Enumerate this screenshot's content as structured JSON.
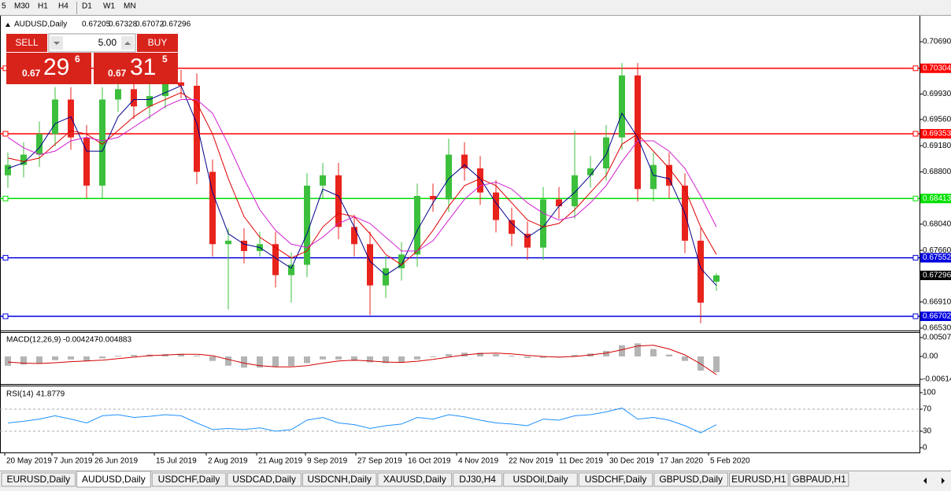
{
  "toolbar": [
    "5",
    "M30",
    "H1",
    "H4",
    "D1",
    "W1",
    "MN"
  ],
  "trade_panel": {
    "sell": "SELL",
    "buy": "BUY",
    "lots": "5.00",
    "bid": {
      "big": "0.67",
      "main": "29",
      "small": "6"
    },
    "ask": {
      "big": "0.67",
      "main": "31",
      "small": "5"
    }
  },
  "chart_data": [
    {
      "type": "candlestick",
      "title": "AUDUSD,Daily",
      "x": [
        0,
        1,
        2,
        3,
        4,
        5,
        6,
        7,
        8,
        9,
        10,
        11,
        12,
        13,
        14,
        15,
        16,
        17,
        18,
        19,
        20,
        21,
        22,
        23,
        24,
        25,
        26,
        27,
        28,
        29,
        30,
        31,
        32,
        33,
        34,
        35,
        36,
        37,
        38,
        39,
        40,
        41,
        42,
        43,
        44,
        45
      ],
      "open": [
        0.6875,
        0.689,
        0.6905,
        0.6935,
        0.6985,
        0.693,
        0.686,
        0.6985,
        0.7,
        0.6975,
        0.699,
        0.701,
        0.7005,
        0.688,
        0.6775,
        0.678,
        0.6765,
        0.6775,
        0.673,
        0.6745,
        0.686,
        0.6875,
        0.68,
        0.6775,
        0.6715,
        0.674,
        0.676,
        0.6845,
        0.684,
        0.6905,
        0.6885,
        0.685,
        0.681,
        0.679,
        0.677,
        0.684,
        0.683,
        0.6875,
        0.6885,
        0.693,
        0.702,
        0.6855,
        0.689,
        0.686,
        0.678,
        0.67205
      ],
      "high": [
        0.6908,
        0.6923,
        0.6953,
        0.7003,
        0.7003,
        0.6948,
        0.7003,
        0.7018,
        0.7018,
        0.7008,
        0.7028,
        0.7028,
        0.7023,
        0.6898,
        0.6798,
        0.6798,
        0.6793,
        0.6793,
        0.6763,
        0.6878,
        0.6893,
        0.6893,
        0.6818,
        0.6793,
        0.6758,
        0.6778,
        0.6863,
        0.6863,
        0.6928,
        0.6923,
        0.6903,
        0.6868,
        0.6828,
        0.6808,
        0.6858,
        0.6858,
        0.694,
        0.6903,
        0.6948,
        0.7038,
        0.7038,
        0.6908,
        0.6908,
        0.6878,
        0.6798,
        0.67328
      ],
      "low": [
        0.6857,
        0.6872,
        0.6887,
        0.6917,
        0.6912,
        0.6842,
        0.6842,
        0.6967,
        0.6957,
        0.6957,
        0.6972,
        0.6987,
        0.6862,
        0.6757,
        0.668,
        0.6747,
        0.6757,
        0.6712,
        0.669,
        0.6727,
        0.6842,
        0.6782,
        0.6757,
        0.6672,
        0.6697,
        0.6722,
        0.6742,
        0.6822,
        0.6822,
        0.6867,
        0.6832,
        0.6792,
        0.6772,
        0.6752,
        0.6752,
        0.6812,
        0.6812,
        0.6857,
        0.6867,
        0.6912,
        0.6837,
        0.6837,
        0.6842,
        0.6762,
        0.666,
        0.67072
      ],
      "close": [
        0.689,
        0.6905,
        0.6935,
        0.6985,
        0.693,
        0.686,
        0.6985,
        0.7,
        0.6975,
        0.699,
        0.701,
        0.7005,
        0.688,
        0.6775,
        0.678,
        0.6765,
        0.6775,
        0.673,
        0.6745,
        0.686,
        0.6875,
        0.68,
        0.6775,
        0.6715,
        0.674,
        0.676,
        0.6845,
        0.684,
        0.6905,
        0.6885,
        0.685,
        0.681,
        0.679,
        0.677,
        0.684,
        0.683,
        0.6875,
        0.6885,
        0.693,
        0.702,
        0.6855,
        0.689,
        0.686,
        0.678,
        0.669,
        0.67296
      ],
      "colors": {
        "up": "#3cbf3c",
        "down": "#e8231c",
        "current": "#000000"
      },
      "moving_averages": [
        {
          "color": "#00008b",
          "values": [
            0.6885,
            0.6893,
            0.6915,
            0.695,
            0.696,
            0.691,
            0.691,
            0.696,
            0.6985,
            0.6985,
            0.6995,
            0.7005,
            0.695,
            0.685,
            0.679,
            0.6775,
            0.677,
            0.6755,
            0.674,
            0.679,
            0.6855,
            0.6845,
            0.68,
            0.675,
            0.673,
            0.6745,
            0.6795,
            0.6835,
            0.687,
            0.689,
            0.687,
            0.6835,
            0.6805,
            0.6785,
            0.68,
            0.683,
            0.685,
            0.6875,
            0.6905,
            0.6965,
            0.693,
            0.6875,
            0.687,
            0.682,
            0.674,
            0.6715
          ]
        },
        {
          "color": "#e00000",
          "values": [
            0.69,
            0.6895,
            0.69,
            0.692,
            0.694,
            0.6935,
            0.692,
            0.694,
            0.696,
            0.6975,
            0.6985,
            0.6995,
            0.698,
            0.6935,
            0.687,
            0.6815,
            0.6785,
            0.677,
            0.6755,
            0.6765,
            0.68,
            0.682,
            0.6815,
            0.679,
            0.676,
            0.6745,
            0.6765,
            0.6795,
            0.683,
            0.686,
            0.687,
            0.686,
            0.6835,
            0.681,
            0.68,
            0.6805,
            0.6825,
            0.685,
            0.6875,
            0.692,
            0.6935,
            0.691,
            0.6885,
            0.6855,
            0.68,
            0.676
          ]
        },
        {
          "color": "#d020d0",
          "values": [
            0.693,
            0.6915,
            0.6905,
            0.691,
            0.6925,
            0.693,
            0.6925,
            0.693,
            0.6945,
            0.696,
            0.6975,
            0.6985,
            0.6985,
            0.6965,
            0.692,
            0.687,
            0.6825,
            0.6795,
            0.6775,
            0.677,
            0.6785,
            0.6805,
            0.6815,
            0.6805,
            0.6785,
            0.6765,
            0.6765,
            0.678,
            0.681,
            0.684,
            0.686,
            0.6865,
            0.6855,
            0.6835,
            0.682,
            0.681,
            0.6815,
            0.6835,
            0.686,
            0.6895,
            0.6925,
            0.6925,
            0.691,
            0.6885,
            0.6845,
            0.68
          ]
        }
      ],
      "levels": [
        {
          "value": 0.70304,
          "color": "#ff0000"
        },
        {
          "value": 0.69353,
          "color": "#ff0000"
        },
        {
          "value": 0.68413,
          "color": "#00e000"
        },
        {
          "value": 0.67552,
          "color": "#0000e0"
        },
        {
          "value": 0.66702,
          "color": "#0000e0"
        }
      ],
      "ylim": [
        0.66496,
        0.71067
      ],
      "yticks": [
        {
          "value": 0.7069,
          "label": "0.70690"
        },
        {
          "value": 0.6993,
          "label": "0.69930"
        },
        {
          "value": 0.6956,
          "label": "0.69560"
        },
        {
          "value": 0.6918,
          "label": "0.69180"
        },
        {
          "value": 0.688,
          "label": "0.68800"
        },
        {
          "value": 0.6804,
          "label": "0.68040"
        },
        {
          "value": 0.6766,
          "label": "0.67660"
        },
        {
          "value": 0.6691,
          "label": "0.66910"
        },
        {
          "value": 0.6653,
          "label": "0.66530"
        }
      ],
      "xlim": [
        -0.5,
        57.9
      ],
      "xticks": [
        {
          "value": -0.2,
          "label": "20 May 2019"
        },
        {
          "value": 2.8,
          "label": "7 Jun 2019"
        },
        {
          "value": 5.4,
          "label": "26 Jun 2019"
        },
        {
          "value": 9.3,
          "label": "15 Jul 2019"
        },
        {
          "value": 12.6,
          "label": "2 Aug 2019"
        },
        {
          "value": 15.8,
          "label": "21 Aug 2019"
        },
        {
          "value": 18.9,
          "label": "9 Sep 2019"
        },
        {
          "value": 22.1,
          "label": "27 Sep 2019"
        },
        {
          "value": 25.3,
          "label": "16 Oct 2019"
        },
        {
          "value": 28.5,
          "label": "4 Nov 2019"
        },
        {
          "value": 31.7,
          "label": "22 Nov 2019"
        },
        {
          "value": 34.9,
          "label": "11 Dec 2019"
        },
        {
          "value": 38.1,
          "label": "30 Dec 2019"
        },
        {
          "value": 41.3,
          "label": "17 Jan 2020"
        },
        {
          "value": 44.5,
          "label": "5 Feb 2020"
        }
      ]
    },
    {
      "type": "macd",
      "title": "MACD(12,26,9)",
      "series": [
        {
          "color": "#b4b4b4",
          "values": [
            -0.0025,
            -0.0022,
            -0.0018,
            -0.001,
            -0.0008,
            -0.0012,
            -0.0005,
            0.0002,
            0.0004,
            0.0005,
            0.0006,
            0.0007,
            0.0002,
            -0.0012,
            -0.0025,
            -0.003,
            -0.003,
            -0.0028,
            -0.0026,
            -0.0018,
            -0.0008,
            -0.0008,
            -0.0012,
            -0.0016,
            -0.0018,
            -0.0016,
            -0.0008,
            -0.0002,
            0.0006,
            0.001,
            0.001,
            0.0006,
            0.0002,
            -0.0004,
            -0.0004,
            -0.0002,
            0.0004,
            0.0008,
            0.0015,
            0.003,
            0.0035,
            0.002,
            0.0005,
            -0.0012,
            -0.0038,
            -0.004247
          ]
        },
        {
          "color": "#d20000",
          "values": [
            -0.0015,
            -0.0018,
            -0.0019,
            -0.0017,
            -0.0014,
            -0.0012,
            -0.001,
            -0.0006,
            -0.0002,
            0.0002,
            0.0004,
            0.0006,
            0.0006,
            0.0002,
            -0.0008,
            -0.0018,
            -0.0025,
            -0.0028,
            -0.0028,
            -0.0025,
            -0.0018,
            -0.0012,
            -0.001,
            -0.0012,
            -0.0015,
            -0.0016,
            -0.0013,
            -0.0008,
            -0.0002,
            0.0004,
            0.0008,
            0.0009,
            0.0007,
            0.0003,
            0.0,
            -0.0002,
            0.0,
            0.0004,
            0.0009,
            0.0018,
            0.0028,
            0.003,
            0.002,
            0.0004,
            -0.002,
            -0.004883
          ]
        }
      ],
      "ylim": [
        -0.0074,
        0.00634
      ],
      "yticks": [
        0.005076,
        {
          "value": 0,
          "label": "0.00"
        },
        -0.006148
      ]
    },
    {
      "type": "line",
      "title": "RSI(14)",
      "color": "#1e90ff",
      "values": [
        45,
        48,
        52,
        58,
        52,
        45,
        58,
        60,
        55,
        57,
        60,
        58,
        45,
        33,
        35,
        33,
        36,
        30,
        33,
        50,
        55,
        45,
        42,
        35,
        40,
        43,
        55,
        52,
        60,
        56,
        50,
        45,
        43,
        40,
        52,
        50,
        58,
        60,
        65,
        72,
        52,
        55,
        50,
        40,
        27,
        41.8779
      ],
      "levels": [
        70,
        30
      ],
      "ylim": [
        -8.6,
        111.4
      ],
      "yticks": [
        100,
        70,
        30,
        0
      ]
    }
  ],
  "tabs": [
    "EURUSD,Daily",
    "AUDUSD,Daily",
    "USDCHF,Daily",
    "USDCAD,Daily",
    "USDCNH,Daily",
    "XAUUSD,Daily",
    "DJ30,H4",
    "USDOil,Daily",
    "USDCHF,Daily",
    "GBPUSD,Daily",
    "EURUSD,H1",
    "GBPAUD,H1"
  ],
  "active_tab": "AUDUSD,Daily"
}
